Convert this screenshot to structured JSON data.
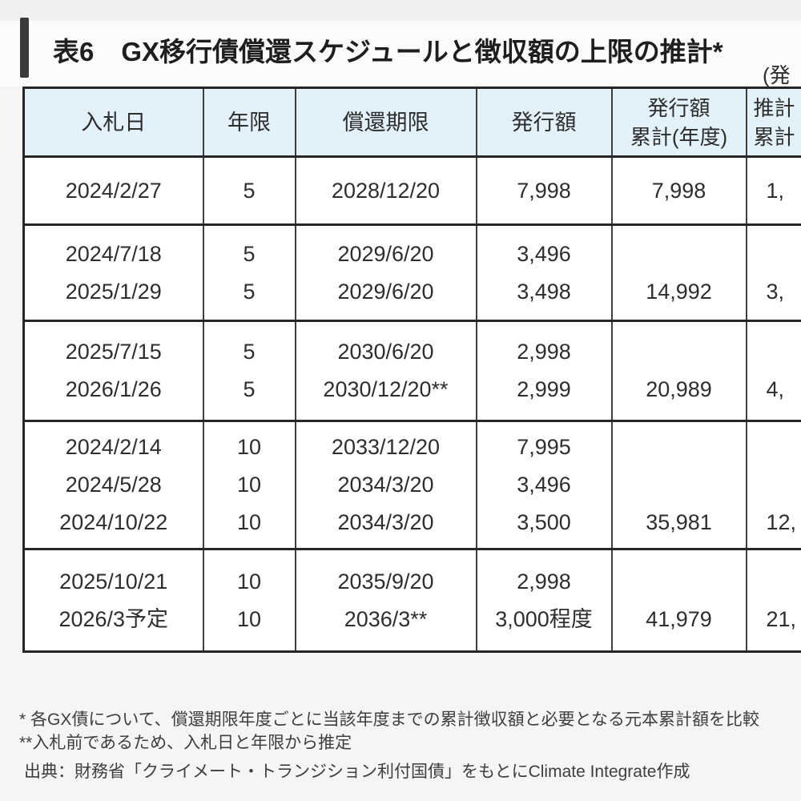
{
  "title": {
    "tag": "表6",
    "text": "GX移行債償還スケジュールと徴収額の上限の推計*",
    "paren_note_partial": "(発"
  },
  "table": {
    "columns": [
      {
        "key": "auction-date",
        "lines": [
          "入札日"
        ]
      },
      {
        "key": "maturity",
        "lines": [
          "年限"
        ]
      },
      {
        "key": "redemption-deadline",
        "lines": [
          "償還期限"
        ]
      },
      {
        "key": "issuance-amount",
        "lines": [
          "発行額"
        ]
      },
      {
        "key": "cumulative-issuance",
        "lines": [
          "発行額",
          "累計(年度)"
        ]
      },
      {
        "key": "cumulative-estimate",
        "lines": [
          "推計",
          "累計"
        ],
        "clipped_at_right_edge": true
      }
    ],
    "groups": [
      {
        "rows": [
          {
            "auction_date": "2024/2/27",
            "maturity_years": "5",
            "redemption_date": "2028/12/20",
            "issuance_amount": "7,998"
          }
        ],
        "cumulative_issuance": "7,998",
        "cumulative_estimate_partial": "1,"
      },
      {
        "rows": [
          {
            "auction_date": "2024/7/18",
            "maturity_years": "5",
            "redemption_date": "2029/6/20",
            "issuance_amount": "3,496"
          },
          {
            "auction_date": "2025/1/29",
            "maturity_years": "5",
            "redemption_date": "2029/6/20",
            "issuance_amount": "3,498"
          }
        ],
        "cumulative_issuance": "14,992",
        "cumulative_estimate_partial": "3,"
      },
      {
        "rows": [
          {
            "auction_date": "2025/7/15",
            "maturity_years": "5",
            "redemption_date": "2030/6/20",
            "issuance_amount": "2,998"
          },
          {
            "auction_date": "2026/1/26",
            "maturity_years": "5",
            "redemption_date": "2030/12/20**",
            "issuance_amount": "2,999"
          }
        ],
        "cumulative_issuance": "20,989",
        "cumulative_estimate_partial": "4,"
      },
      {
        "rows": [
          {
            "auction_date": "2024/2/14",
            "maturity_years": "10",
            "redemption_date": "2033/12/20",
            "issuance_amount": "7,995"
          },
          {
            "auction_date": "2024/5/28",
            "maturity_years": "10",
            "redemption_date": "2034/3/20",
            "issuance_amount": "3,496"
          },
          {
            "auction_date": "2024/10/22",
            "maturity_years": "10",
            "redemption_date": "2034/3/20",
            "issuance_amount": "3,500"
          }
        ],
        "cumulative_issuance": "35,981",
        "cumulative_estimate_partial": "12,"
      },
      {
        "rows": [
          {
            "auction_date": "2025/10/21",
            "maturity_years": "10",
            "redemption_date": "2035/9/20",
            "issuance_amount": "2,998"
          },
          {
            "auction_date": "2026/3予定",
            "maturity_years": "10",
            "redemption_date": "2036/3**",
            "issuance_amount": "3,000程度"
          }
        ],
        "cumulative_issuance": "41,979",
        "cumulative_estimate_partial": "21,"
      }
    ]
  },
  "footnotes": [
    "* 各GX債について、償還期限年度ごとに当該年度までの累計徴収額と必要となる元本累計額を比較",
    "**入札前であるため、入札日と年限から推定"
  ],
  "source": "出典：財務省「クライメート・トランジション利付国債」をもとにClimate Integrate作成",
  "colors": {
    "header_bg": "#e3f1fa",
    "border_dark": "#262626",
    "border_gray": "#3f3f3f",
    "accent_bar": "#3a3a3b",
    "text": "#2e2e2e",
    "page_bg": "#f5f5f3"
  }
}
